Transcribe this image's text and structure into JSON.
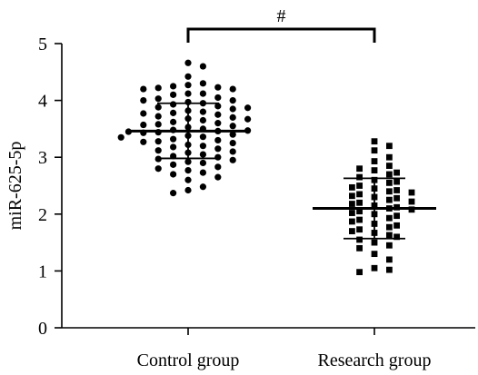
{
  "chart_data": {
    "type": "scatter",
    "ylabel": "miR-625-5p",
    "ylim": [
      0,
      5
    ],
    "yticks": [
      0,
      1,
      2,
      3,
      4,
      5
    ],
    "grid": false,
    "categories": [
      "Control group",
      "Research group"
    ],
    "significance_label": "#",
    "groups": [
      {
        "category": "Control group",
        "marker": "circle",
        "mean": 3.46,
        "sd_upper": 3.95,
        "sd_lower": 2.98,
        "values": [
          4.66,
          4.6,
          4.42,
          4.3,
          4.27,
          4.25,
          4.23,
          4.22,
          4.2,
          4.2,
          4.12,
          4.12,
          4.1,
          4.05,
          4.03,
          4.0,
          4.0,
          3.97,
          3.95,
          3.93,
          3.9,
          3.88,
          3.87,
          3.85,
          3.82,
          3.8,
          3.78,
          3.77,
          3.75,
          3.72,
          3.7,
          3.68,
          3.67,
          3.65,
          3.62,
          3.6,
          3.58,
          3.57,
          3.55,
          3.53,
          3.5,
          3.48,
          3.47,
          3.46,
          3.45,
          3.44,
          3.43,
          3.4,
          3.38,
          3.36,
          3.35,
          3.32,
          3.3,
          3.28,
          3.27,
          3.25,
          3.22,
          3.2,
          3.18,
          3.15,
          3.12,
          3.1,
          3.08,
          3.05,
          3.02,
          3.0,
          2.97,
          2.95,
          2.92,
          2.9,
          2.87,
          2.83,
          2.8,
          2.77,
          2.73,
          2.7,
          2.65,
          2.6,
          2.48,
          2.42,
          2.37
        ]
      },
      {
        "category": "Research group",
        "marker": "square",
        "mean": 2.1,
        "sd_upper": 2.63,
        "sd_lower": 1.57,
        "values": [
          3.28,
          3.2,
          3.12,
          3.0,
          2.93,
          2.85,
          2.8,
          2.77,
          2.73,
          2.7,
          2.65,
          2.6,
          2.57,
          2.55,
          2.5,
          2.47,
          2.45,
          2.42,
          2.4,
          2.38,
          2.35,
          2.32,
          2.3,
          2.28,
          2.25,
          2.22,
          2.2,
          2.18,
          2.15,
          2.12,
          2.1,
          2.08,
          2.05,
          2.02,
          2.0,
          1.97,
          1.93,
          1.9,
          1.87,
          1.83,
          1.8,
          1.77,
          1.73,
          1.7,
          1.67,
          1.63,
          1.6,
          1.55,
          1.5,
          1.45,
          1.4,
          1.3,
          1.2,
          1.05,
          1.02,
          0.98
        ]
      }
    ]
  }
}
